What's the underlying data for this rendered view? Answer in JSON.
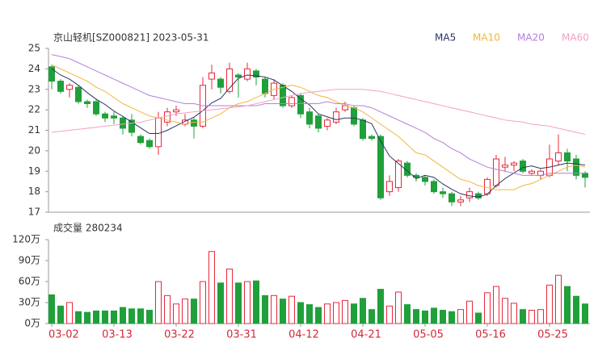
{
  "chart_data": [
    {
      "type": "candlestick",
      "title": "京山轻机[SZ000821] 2023-05-31",
      "open": [
        24.1,
        23.4,
        23.0,
        23.1,
        22.4,
        22.4,
        21.8,
        21.7,
        21.6,
        21.5,
        20.7,
        20.5,
        20.2,
        21.4,
        21.9,
        21.3,
        21.5,
        21.2,
        23.5,
        23.5,
        22.9,
        23.7,
        23.5,
        23.9,
        23.5,
        22.7,
        23.2,
        22.2,
        22.7,
        21.9,
        21.7,
        21.2,
        21.4,
        22.0,
        22.1,
        21.5,
        20.7,
        20.7,
        18.0,
        18.2,
        19.4,
        18.8,
        18.7,
        18.5,
        18.0,
        17.9,
        17.5,
        17.7,
        17.9,
        17.9,
        18.3,
        19.2,
        19.3,
        19.5,
        18.9,
        18.8,
        18.8,
        19.5,
        19.9,
        19.6,
        18.9
      ],
      "high": [
        24.2,
        23.5,
        23.3,
        23.2,
        22.5,
        22.5,
        21.9,
        21.9,
        21.7,
        21.8,
        20.8,
        20.6,
        21.9,
        22.1,
        22.2,
        21.8,
        21.6,
        23.6,
        24.2,
        23.6,
        24.3,
        23.8,
        24.3,
        24.0,
        23.6,
        23.5,
        23.3,
        22.7,
        22.8,
        22.1,
        21.8,
        21.6,
        22.1,
        22.4,
        22.2,
        21.6,
        20.8,
        20.8,
        18.8,
        19.6,
        19.5,
        18.9,
        18.8,
        18.6,
        18.2,
        18.0,
        17.8,
        18.2,
        18.0,
        18.7,
        19.8,
        19.7,
        19.5,
        19.6,
        19.1,
        19.1,
        20.3,
        20.8,
        20.1,
        19.8,
        19.0
      ],
      "low": [
        23.0,
        22.8,
        22.6,
        22.3,
        22.1,
        21.7,
        21.4,
        21.3,
        20.8,
        20.7,
        20.3,
        20.1,
        19.8,
        21.2,
        21.7,
        21.2,
        20.6,
        21.1,
        23.0,
        22.8,
        22.8,
        22.6,
        23.4,
        23.2,
        22.6,
        22.5,
        22.1,
        22.1,
        21.6,
        21.1,
        20.9,
        21.0,
        21.3,
        21.9,
        21.2,
        20.5,
        20.5,
        17.6,
        17.8,
        18.0,
        18.7,
        18.5,
        18.3,
        17.9,
        17.7,
        17.3,
        17.3,
        17.5,
        17.6,
        17.8,
        18.2,
        19.0,
        19.0,
        18.9,
        18.8,
        18.6,
        18.7,
        19.3,
        19.0,
        18.6,
        18.2
      ],
      "close": [
        23.4,
        22.9,
        23.2,
        22.4,
        22.3,
        21.8,
        21.6,
        21.6,
        21.1,
        20.9,
        20.4,
        20.2,
        21.6,
        21.9,
        22.0,
        21.5,
        21.2,
        23.2,
        23.8,
        23.1,
        24.0,
        23.6,
        24.0,
        23.6,
        22.8,
        23.3,
        22.2,
        22.6,
        21.8,
        21.3,
        21.1,
        21.5,
        21.9,
        22.2,
        21.3,
        20.6,
        20.6,
        17.7,
        18.5,
        19.5,
        18.8,
        18.7,
        18.5,
        18.0,
        17.9,
        17.5,
        17.6,
        18.0,
        17.7,
        18.6,
        19.6,
        19.3,
        19.4,
        19.0,
        19.0,
        19.0,
        19.6,
        19.9,
        19.5,
        18.8,
        18.7
      ],
      "up_color": "#e8283c",
      "down_color": "#1fa03a",
      "series": [
        {
          "name": "MA5",
          "color": "#2b3563",
          "values": [
            24.0,
            23.7,
            23.5,
            23.2,
            22.84,
            22.52,
            22.26,
            21.94,
            21.68,
            21.4,
            21.12,
            20.84,
            20.84,
            21.0,
            21.22,
            21.44,
            21.64,
            21.96,
            22.34,
            22.56,
            23.06,
            23.54,
            23.7,
            23.66,
            23.6,
            23.46,
            23.18,
            22.9,
            22.54,
            22.24,
            21.8,
            21.66,
            21.52,
            21.6,
            21.6,
            21.5,
            21.32,
            20.48,
            19.74,
            19.38,
            19.02,
            18.64,
            18.8,
            18.7,
            18.38,
            18.12,
            17.9,
            17.8,
            17.74,
            17.88,
            18.3,
            18.64,
            18.92,
            19.18,
            19.26,
            19.14,
            19.2,
            19.3,
            19.4,
            19.36,
            19.3
          ]
        },
        {
          "name": "MA10",
          "color": "#f2b640",
          "values": [
            24.2,
            24.0,
            23.8,
            23.6,
            23.4,
            23.1,
            22.9,
            22.6,
            22.3,
            22.1,
            21.9,
            21.7,
            21.6,
            21.5,
            21.4,
            21.3,
            21.4,
            21.4,
            21.6,
            21.8,
            22.1,
            22.3,
            22.4,
            22.6,
            22.8,
            23.0,
            23.1,
            23.2,
            23.1,
            22.9,
            22.7,
            22.6,
            22.4,
            22.2,
            22.1,
            21.9,
            21.6,
            21.3,
            21.0,
            20.7,
            20.3,
            19.9,
            19.8,
            19.5,
            19.2,
            18.9,
            18.6,
            18.5,
            18.3,
            18.2,
            18.1,
            18.1,
            18.1,
            18.3,
            18.4,
            18.6,
            18.8,
            19.0,
            19.2,
            19.3,
            19.2
          ]
        },
        {
          "name": "MA20",
          "color": "#b47fdb",
          "values": [
            24.7,
            24.6,
            24.5,
            24.3,
            24.1,
            23.9,
            23.7,
            23.5,
            23.3,
            23.1,
            22.9,
            22.7,
            22.6,
            22.5,
            22.4,
            22.3,
            22.3,
            22.2,
            22.2,
            22.2,
            22.2,
            22.2,
            22.2,
            22.2,
            22.3,
            22.3,
            22.3,
            22.3,
            22.3,
            22.3,
            22.3,
            22.4,
            22.3,
            22.3,
            22.2,
            22.2,
            22.1,
            21.9,
            21.7,
            21.5,
            21.3,
            21.1,
            20.9,
            20.6,
            20.4,
            20.1,
            19.9,
            19.6,
            19.4,
            19.2,
            19.1,
            19.0,
            18.9,
            18.8,
            18.8,
            18.8,
            18.9,
            18.9,
            18.9,
            18.9,
            18.9
          ]
        },
        {
          "name": "MA60",
          "color": "#f2a0c6",
          "values": [
            20.9,
            20.95,
            21.0,
            21.05,
            21.1,
            21.15,
            21.2,
            21.25,
            21.3,
            21.35,
            21.4,
            21.5,
            21.6,
            21.7,
            21.8,
            21.85,
            21.9,
            21.95,
            22.0,
            22.05,
            22.1,
            22.15,
            22.2,
            22.3,
            22.4,
            22.5,
            22.6,
            22.7,
            22.8,
            22.85,
            22.9,
            22.95,
            23.0,
            23.0,
            23.0,
            23.0,
            22.95,
            22.9,
            22.8,
            22.7,
            22.6,
            22.5,
            22.4,
            22.3,
            22.2,
            22.1,
            22.0,
            21.9,
            21.8,
            21.7,
            21.6,
            21.5,
            21.45,
            21.4,
            21.3,
            21.25,
            21.2,
            21.1,
            21.0,
            20.9,
            20.8
          ]
        }
      ],
      "ylim": [
        17,
        25
      ],
      "yticks": [
        17,
        18,
        19,
        20,
        21,
        22,
        23,
        24,
        25
      ]
    },
    {
      "type": "bar",
      "title": "成交量 280234",
      "categories": [
        "03-02",
        null,
        null,
        null,
        null,
        null,
        null,
        "03-13",
        null,
        null,
        null,
        null,
        null,
        null,
        "03-22",
        null,
        null,
        null,
        null,
        null,
        null,
        "03-31",
        null,
        null,
        null,
        null,
        null,
        null,
        "04-12",
        null,
        null,
        null,
        null,
        null,
        null,
        "04-21",
        null,
        null,
        null,
        null,
        null,
        null,
        "05-05",
        null,
        null,
        null,
        null,
        null,
        null,
        "05-16",
        null,
        null,
        null,
        null,
        null,
        null,
        "05-25",
        null,
        null,
        null,
        null
      ],
      "values": [
        41,
        25,
        30,
        17,
        16,
        18,
        18,
        18,
        23,
        21,
        21,
        19,
        60,
        40,
        28,
        35,
        35,
        60,
        103,
        58,
        78,
        58,
        60,
        61,
        40,
        40,
        35,
        39,
        30,
        27,
        23,
        28,
        30,
        33,
        28,
        36,
        20,
        49,
        25,
        45,
        27,
        20,
        18,
        22,
        19,
        17,
        20,
        32,
        15,
        44,
        53,
        36,
        29,
        20,
        19,
        20,
        55,
        69,
        53,
        39,
        28
      ],
      "ylim": [
        0,
        120
      ],
      "yticks": [
        {
          "value": 0,
          "label": "0万"
        },
        {
          "value": 30,
          "label": "30万"
        },
        {
          "value": 60,
          "label": "60万"
        },
        {
          "value": 90,
          "label": "90万"
        },
        {
          "value": 120,
          "label": "120万"
        }
      ]
    }
  ]
}
